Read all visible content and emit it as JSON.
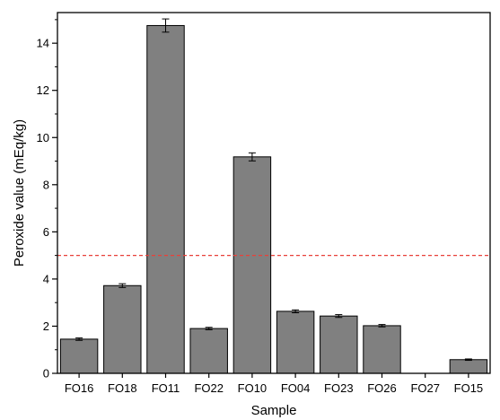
{
  "chart_data": {
    "type": "bar",
    "title": "",
    "xlabel": "Sample",
    "ylabel": "Peroxide value (mEq/kg)",
    "categories": [
      "FO16",
      "FO18",
      "FO11",
      "FO22",
      "FO10",
      "FO04",
      "FO23",
      "FO26",
      "FO27",
      "FO15"
    ],
    "values": [
      1.45,
      3.72,
      14.75,
      1.9,
      9.18,
      2.63,
      2.43,
      2.02,
      0,
      0.58
    ],
    "errors": [
      0.05,
      0.08,
      0.28,
      0.05,
      0.17,
      0.06,
      0.06,
      0.05,
      0,
      0.03
    ],
    "ylim": [
      0,
      15.3
    ],
    "yticks": [
      "0",
      "2",
      "4",
      "6",
      "8",
      "10",
      "12",
      "14"
    ],
    "reference_line": {
      "y": 5,
      "color": "#e8403a",
      "style": "dashed"
    },
    "bar_color": "#808080",
    "grid": false,
    "legend": "none"
  }
}
